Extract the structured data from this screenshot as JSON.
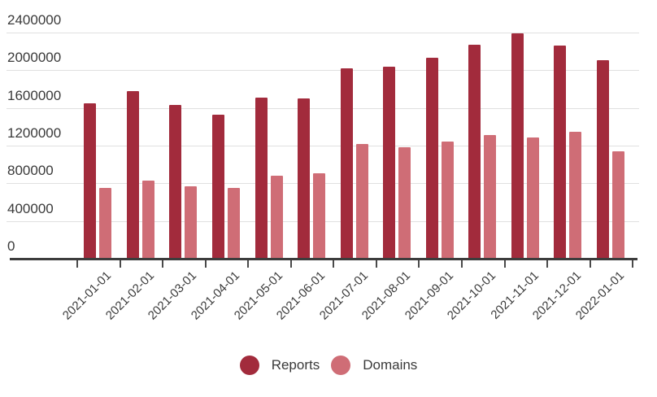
{
  "chart_data": {
    "type": "bar",
    "title": "",
    "xlabel": "",
    "ylabel": "",
    "categories": [
      "2021-01-01",
      "2021-02-01",
      "2021-03-01",
      "2021-04-01",
      "2021-05-01",
      "2021-06-01",
      "2021-07-01",
      "2021-08-01",
      "2021-09-01",
      "2021-10-01",
      "2021-11-01",
      "2021-12-01",
      "2022-01-01"
    ],
    "series": [
      {
        "name": "Reports",
        "color": "#a22b3c",
        "values": [
          1650000,
          1780000,
          1630000,
          1530000,
          1710000,
          1700000,
          2020000,
          2040000,
          2130000,
          2270000,
          2390000,
          2260000,
          2110000
        ]
      },
      {
        "name": "Domains",
        "color": "#cf6d76",
        "values": [
          750000,
          830000,
          770000,
          750000,
          880000,
          910000,
          1220000,
          1180000,
          1240000,
          1310000,
          1290000,
          1350000,
          1140000
        ]
      }
    ],
    "ylim": [
      0,
      2400000
    ],
    "y_ticks": [
      0,
      400000,
      800000,
      1200000,
      1600000,
      2000000,
      2400000
    ],
    "y_tick_labels": [
      "0",
      "400000",
      "800000",
      "1200000",
      "1600000",
      "2000000",
      "2400000"
    ],
    "grid": "horizontal",
    "legend_position": "bottom"
  },
  "legend": {
    "items": [
      {
        "label": "Reports",
        "color": "#a22b3c"
      },
      {
        "label": "Domains",
        "color": "#cf6d76"
      }
    ]
  },
  "colors": {
    "background": "#ffffff",
    "gridline": "#e0e0e0",
    "axis": "#3c3c3c",
    "text": "#3a3a3a"
  }
}
